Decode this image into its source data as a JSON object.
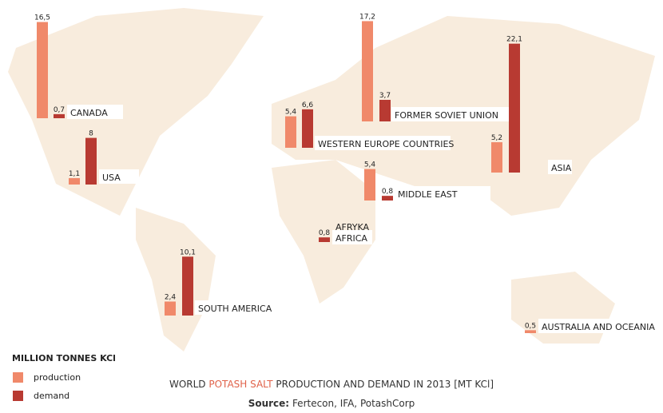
{
  "chart_data": {
    "type": "bar",
    "title": {
      "prefix": "WORLD",
      "highlight": "POTASH SALT",
      "suffix": "PRODUCTION AND DEMAND IN 2013 [MT KCl]"
    },
    "source": {
      "label": "Source:",
      "text": "Fertecon, IFA, PotashCorp"
    },
    "legend_title": "MILLION TONNES KCl",
    "categories": [
      "CANADA",
      "USA",
      "SOUTH AMERICA",
      "WESTERN EUROPE COUNTRIES",
      "FORMER SOVIET UNION",
      "MIDDLE EAST",
      "ASIA",
      "AFRICA",
      "AUSTRALIA AND OCEANIA"
    ],
    "annotations": [
      "AFRYKA"
    ],
    "series": [
      {
        "name": "production",
        "color": "#f0896a",
        "values": [
          16.5,
          1.1,
          2.4,
          5.4,
          17.2,
          5.4,
          5.2,
          null,
          0.5
        ],
        "value_labels": [
          "16,5",
          "1,1",
          "2,4",
          "5,4",
          "17,2",
          "5,4",
          "5,2",
          null,
          "0,5"
        ]
      },
      {
        "name": "demand",
        "color": "#b83a32",
        "values": [
          0.7,
          8,
          10.1,
          6.6,
          3.7,
          0.8,
          22.1,
          0.8,
          null
        ],
        "value_labels": [
          "0,7",
          "8",
          "10,1",
          "6,6",
          "3,7",
          "0,8",
          "22,1",
          "0,8",
          null
        ]
      }
    ]
  }
}
